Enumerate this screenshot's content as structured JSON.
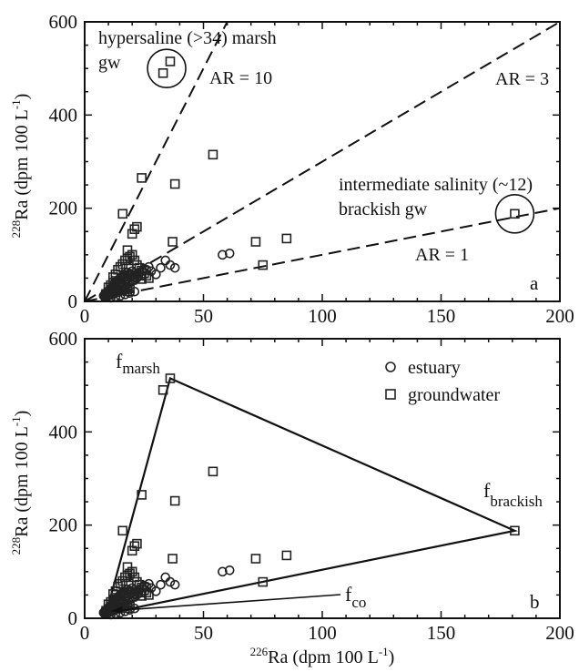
{
  "chart_data": [
    {
      "panel": "a",
      "type": "scatter",
      "panel_label": "a",
      "ylabel": {
        "sup": "228",
        "main": "Ra (dpm 100 L",
        "exp": "-1",
        "close": ")"
      },
      "xlim": [
        0,
        200
      ],
      "ylim": [
        0,
        600
      ],
      "x_ticks": [
        0,
        50,
        100,
        150,
        200
      ],
      "y_ticks": [
        0,
        200,
        400,
        600
      ],
      "grid": false,
      "reference_lines": [
        {
          "label": "AR = 10",
          "ratio": 10
        },
        {
          "label": "AR = 3",
          "ratio": 3
        },
        {
          "label": "AR = 1",
          "ratio": 1
        }
      ],
      "annotations": {
        "hypersaline_line1": "hypersaline (>34) marsh",
        "hypersaline_line2": "gw",
        "intermediate_line1": "intermediate salinity (~12)",
        "intermediate_line2": "brackish gw"
      },
      "highlight_circles": [
        {
          "x": 34.5,
          "y": 500,
          "note": "hypersaline marsh gw"
        },
        {
          "x": 181,
          "y": 188,
          "note": "brackish gw"
        }
      ]
    },
    {
      "panel": "b",
      "type": "scatter",
      "panel_label": "b",
      "ylabel": {
        "sup": "228",
        "main": "Ra (dpm 100 L",
        "exp": "-1",
        "close": ")"
      },
      "xlabel": {
        "sup": "226",
        "main": "Ra (dpm 100 L",
        "exp": "-1",
        "close": ")"
      },
      "xlim": [
        0,
        200
      ],
      "ylim": [
        0,
        600
      ],
      "x_ticks": [
        0,
        50,
        100,
        150,
        200
      ],
      "y_ticks": [
        0,
        200,
        400,
        600
      ],
      "grid": false,
      "legend": {
        "placement": "top-right",
        "entries": [
          {
            "marker": "circle",
            "label": "estuary"
          },
          {
            "marker": "square",
            "label": "groundwater"
          }
        ]
      },
      "endmembers": [
        {
          "base": "f",
          "sub": "marsh",
          "x": 36,
          "y": 515
        },
        {
          "base": "f",
          "sub": "brackish",
          "x": 181,
          "y": 188
        },
        {
          "base": "f",
          "sub": "co",
          "x": 9,
          "y": 10
        }
      ]
    }
  ],
  "series": {
    "estuary": {
      "marker": "circle",
      "points": [
        [
          8,
          12
        ],
        [
          8.5,
          15
        ],
        [
          9,
          18
        ],
        [
          9.5,
          20
        ],
        [
          10,
          22
        ],
        [
          10.5,
          25
        ],
        [
          11,
          28
        ],
        [
          11.5,
          30
        ],
        [
          12,
          33
        ],
        [
          12.5,
          36
        ],
        [
          13,
          40
        ],
        [
          13.5,
          42
        ],
        [
          14,
          45
        ],
        [
          14.5,
          48
        ],
        [
          15,
          50
        ],
        [
          15.5,
          52
        ],
        [
          16,
          55
        ],
        [
          16.5,
          58
        ],
        [
          17,
          52
        ],
        [
          17.5,
          48
        ],
        [
          18,
          62
        ],
        [
          18.5,
          57
        ],
        [
          19,
          60
        ],
        [
          19.5,
          55
        ],
        [
          20,
          65
        ],
        [
          21,
          52
        ],
        [
          22,
          58
        ],
        [
          23,
          62
        ],
        [
          24,
          55
        ],
        [
          25,
          70
        ],
        [
          26,
          68
        ],
        [
          27,
          74
        ],
        [
          28,
          65
        ],
        [
          30,
          58
        ],
        [
          32,
          72
        ],
        [
          34,
          88
        ],
        [
          36,
          78
        ],
        [
          38,
          72
        ],
        [
          58,
          100
        ],
        [
          61,
          103
        ],
        [
          9,
          10
        ],
        [
          10,
          12
        ],
        [
          11,
          14
        ],
        [
          12,
          16
        ],
        [
          13,
          18
        ],
        [
          14,
          20
        ],
        [
          15,
          22
        ],
        [
          16,
          25
        ],
        [
          17,
          28
        ],
        [
          18,
          30
        ],
        [
          8.5,
          9
        ],
        [
          9.5,
          11
        ],
        [
          10.5,
          13
        ],
        [
          11.5,
          17
        ],
        [
          12.5,
          21
        ],
        [
          13.5,
          24
        ],
        [
          14.5,
          27
        ],
        [
          15.5,
          31
        ],
        [
          16.5,
          34
        ],
        [
          17.5,
          37
        ],
        [
          19,
          40
        ],
        [
          20,
          44
        ],
        [
          21,
          47
        ],
        [
          22,
          50
        ],
        [
          11,
          8
        ],
        [
          13,
          10
        ],
        [
          15,
          12
        ],
        [
          17,
          15
        ],
        [
          19,
          18
        ],
        [
          21,
          21
        ]
      ]
    },
    "groundwater": {
      "marker": "square",
      "points": [
        [
          33,
          490
        ],
        [
          36,
          515
        ],
        [
          54,
          315
        ],
        [
          38,
          252
        ],
        [
          24,
          265
        ],
        [
          16,
          188
        ],
        [
          20,
          145
        ],
        [
          21,
          155
        ],
        [
          22,
          160
        ],
        [
          18,
          110
        ],
        [
          37,
          128
        ],
        [
          72,
          128
        ],
        [
          85,
          135
        ],
        [
          75,
          78
        ],
        [
          12,
          52
        ],
        [
          13,
          58
        ],
        [
          14,
          68
        ],
        [
          15,
          74
        ],
        [
          16,
          80
        ],
        [
          17,
          88
        ],
        [
          18,
          92
        ],
        [
          19,
          96
        ],
        [
          20,
          100
        ],
        [
          21,
          88
        ],
        [
          22,
          78
        ],
        [
          23,
          72
        ],
        [
          24,
          66
        ],
        [
          25,
          60
        ],
        [
          26,
          55
        ],
        [
          27,
          50
        ],
        [
          10,
          30
        ],
        [
          11,
          35
        ],
        [
          12,
          40
        ],
        [
          13,
          44
        ],
        [
          14,
          38
        ],
        [
          15,
          34
        ],
        [
          16,
          30
        ],
        [
          17,
          26
        ],
        [
          18,
          22
        ],
        [
          19,
          28
        ],
        [
          20,
          46
        ],
        [
          21,
          52
        ],
        [
          22,
          56
        ],
        [
          24,
          48
        ],
        [
          9,
          16
        ],
        [
          10,
          20
        ],
        [
          11,
          25
        ],
        [
          12,
          28
        ],
        [
          13,
          32
        ],
        [
          181,
          188
        ]
      ]
    }
  }
}
